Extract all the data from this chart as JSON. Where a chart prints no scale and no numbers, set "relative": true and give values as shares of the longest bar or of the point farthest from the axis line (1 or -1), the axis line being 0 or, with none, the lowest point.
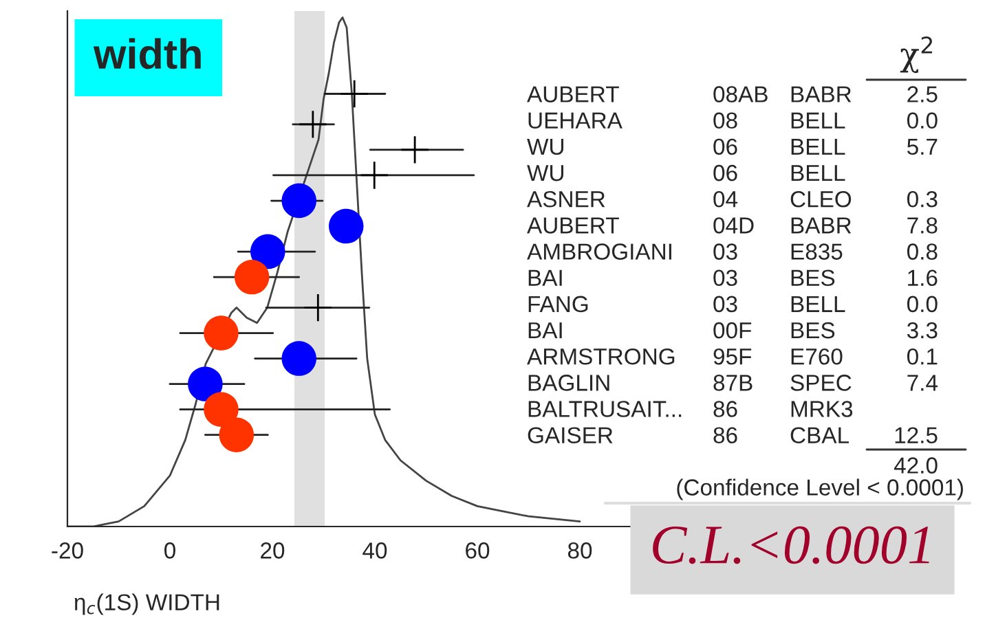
{
  "chart_data": {
    "type": "line",
    "relative": true,
    "title": "width",
    "xlabel": "η$_{c}$(1S) WIDTH",
    "xlim": [
      -20,
      100
    ],
    "xticks": [
      -20,
      0,
      20,
      40,
      60,
      80
    ],
    "tick_labels": "x",
    "grid": false,
    "bands": [
      {
        "axis": "x",
        "from": 24.3,
        "to": 30.2,
        "color": "#e0e0e0"
      }
    ],
    "series": [
      {
        "color": "#444444",
        "x": [
          -20,
          -15,
          -10,
          -5,
          0,
          3,
          5,
          7,
          12,
          13,
          15,
          17,
          19,
          21,
          23,
          27,
          29,
          30,
          31,
          32,
          33,
          33.7,
          34.5,
          35.5,
          36.5,
          37.5,
          38.5,
          40,
          42,
          45,
          50,
          55,
          60,
          65,
          70,
          80
        ],
        "values": [
          0,
          0.0,
          0.01,
          0.04,
          0.1,
          0.17,
          0.24,
          0.32,
          0.42,
          0.43,
          0.41,
          0.4,
          0.43,
          0.5,
          0.58,
          0.7,
          0.76,
          0.84,
          0.89,
          0.95,
          0.99,
          1.0,
          0.98,
          0.85,
          0.67,
          0.49,
          0.33,
          0.22,
          0.17,
          0.13,
          0.09,
          0.06,
          0.04,
          0.03,
          0.02,
          0.01
        ]
      },
      {
        "type": "scatter",
        "marker": "cross",
        "color": "#000000",
        "x": [
          36.0,
          27.9,
          47.8,
          39.9,
          28.9
        ],
        "values": [
          0.85,
          0.79,
          0.74,
          0.69,
          0.43
        ],
        "xerrors": [
          [
            30.2,
            42.0
          ],
          [
            24.0,
            32.0
          ],
          [
            39.1,
            57.2
          ],
          [
            20.2,
            59.3
          ],
          [
            18.8,
            38.9
          ]
        ]
      },
      {
        "type": "scatter",
        "marker": "circle",
        "colors": [
          "#0000ff",
          "#0000ff",
          "#0000ff",
          "#ff3300",
          "#ff3300",
          "#0000ff",
          "#0000ff",
          "#ff3300",
          "#ff3300"
        ],
        "x": [
          25.2,
          34.4,
          19.1,
          16.0,
          10.0,
          25.2,
          6.9,
          10.0,
          13.0
        ],
        "values": [
          0.64,
          0.59,
          0.54,
          0.49,
          0.38,
          0.33,
          0.28,
          0.23,
          0.18
        ],
        "xerrors": [
          [
            19.8,
            29.8
          ],
          null,
          [
            13.3,
            28.3
          ],
          [
            8.6,
            25.2
          ],
          [
            2.0,
            20.1
          ],
          [
            16.6,
            36.4
          ],
          [
            0.0,
            14.5
          ],
          [
            2.0,
            42.9
          ],
          [
            6.9,
            19.1
          ]
        ]
      }
    ],
    "annotations": [
      "χ$^{2}$",
      "AUBERT\t08AB\tBABR\t2.5",
      "UEHARA\t08\tBELL\t0.0",
      "WU\t06\tBELL\t5.7",
      "WU\t06\tBELL\t",
      "ASNER\t04\tCLEO\t0.3",
      "AUBERT\t04D\tBABR\t7.8",
      "AMBROGIANI\t03\tE835\t0.8",
      "BAI\t03\tBES\t1.6",
      "FANG\t03\tBELL\t0.0",
      "BAI\t00F\tBES\t3.3",
      "ARMSTRONG\t95F\tE760\t0.1",
      "BAGLIN\t87B\tSPEC\t7.4",
      "BALTRUSAIT...\t86\tMRK3\t",
      "GAISER\t86\tCBAL\t12.5",
      "42.0",
      "(Confidence Level < 0.0001)",
      "C.L.<0.0001"
    ]
  }
}
